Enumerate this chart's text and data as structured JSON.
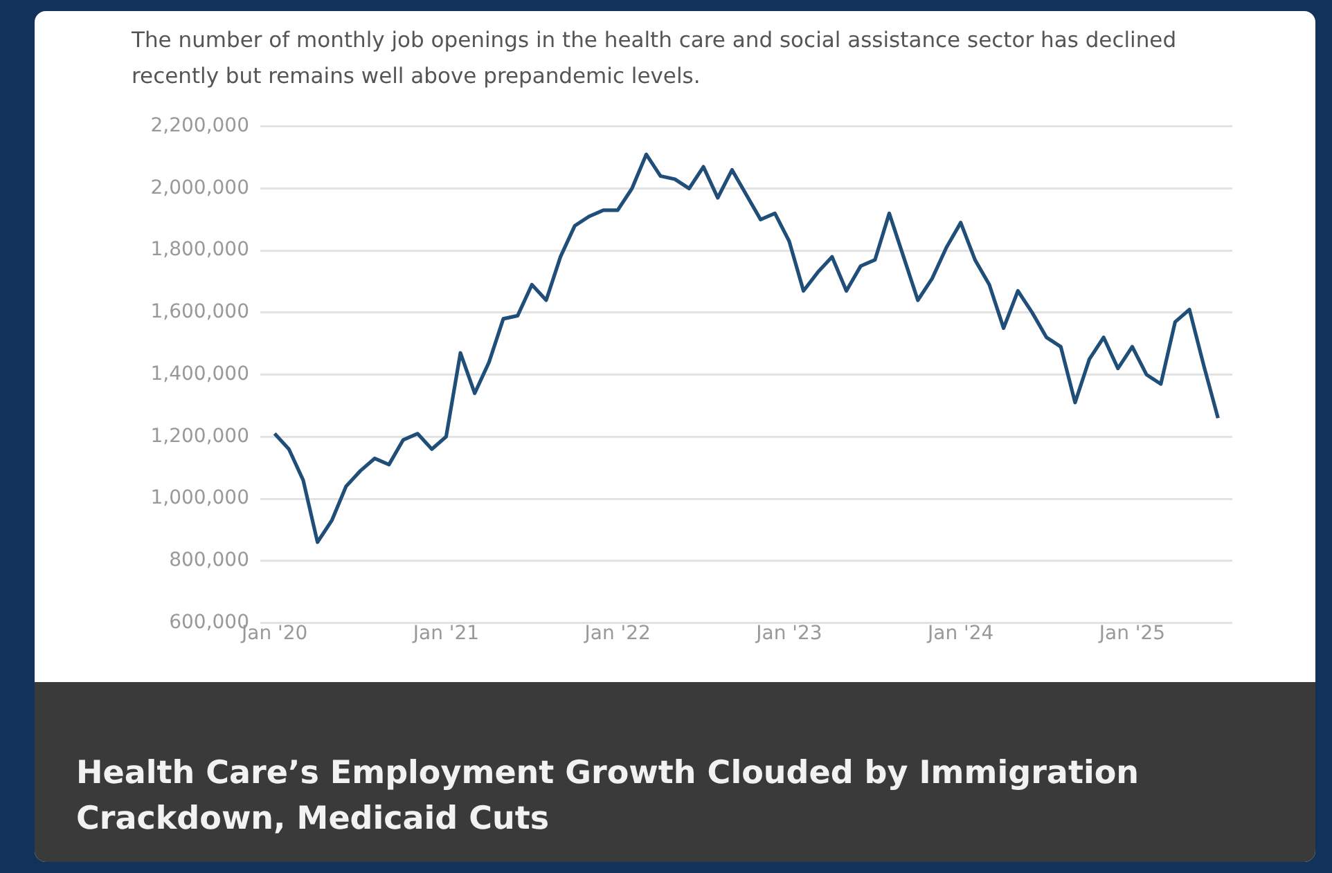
{
  "chart_data": {
    "type": "line",
    "title": "Health Care’s Employment Growth Clouded by Immigration Crackdown, Medicaid Cuts",
    "subtitle": "The number of monthly job openings in the health care and social assistance sector has declined recently but remains well above prepandemic levels.",
    "x": [
      "2020-01",
      "2020-02",
      "2020-03",
      "2020-04",
      "2020-05",
      "2020-06",
      "2020-07",
      "2020-08",
      "2020-09",
      "2020-10",
      "2020-11",
      "2020-12",
      "2021-01",
      "2021-02",
      "2021-03",
      "2021-04",
      "2021-05",
      "2021-06",
      "2021-07",
      "2021-08",
      "2021-09",
      "2021-10",
      "2021-11",
      "2021-12",
      "2022-01",
      "2022-02",
      "2022-03",
      "2022-04",
      "2022-05",
      "2022-06",
      "2022-07",
      "2022-08",
      "2022-09",
      "2022-10",
      "2022-11",
      "2022-12",
      "2023-01",
      "2023-02",
      "2023-03",
      "2023-04",
      "2023-05",
      "2023-06",
      "2023-07",
      "2023-08",
      "2023-09",
      "2023-10",
      "2023-11",
      "2023-12",
      "2024-01",
      "2024-02",
      "2024-03",
      "2024-04",
      "2024-05",
      "2024-06",
      "2024-07",
      "2024-08",
      "2024-09",
      "2024-10",
      "2024-11",
      "2024-12",
      "2025-01",
      "2025-02",
      "2025-03",
      "2025-04",
      "2025-05",
      "2025-06",
      "2025-07"
    ],
    "values": [
      1210000,
      1160000,
      1060000,
      860000,
      930000,
      1040000,
      1090000,
      1130000,
      1110000,
      1190000,
      1210000,
      1160000,
      1200000,
      1470000,
      1340000,
      1440000,
      1580000,
      1590000,
      1690000,
      1640000,
      1780000,
      1880000,
      1910000,
      1930000,
      1930000,
      2000000,
      2110000,
      2040000,
      2030000,
      2000000,
      2070000,
      1970000,
      2060000,
      1980000,
      1900000,
      1920000,
      1830000,
      1670000,
      1730000,
      1780000,
      1670000,
      1750000,
      1770000,
      1920000,
      1780000,
      1640000,
      1710000,
      1810000,
      1890000,
      1770000,
      1690000,
      1550000,
      1670000,
      1600000,
      1520000,
      1490000,
      1310000,
      1450000,
      1520000,
      1420000,
      1490000,
      1400000,
      1370000,
      1570000,
      1610000,
      1430000,
      1260000
    ],
    "color": "#1f4e79",
    "marker": "none",
    "grid": "y",
    "legend": false,
    "xlim": [
      "2019-12",
      "2025-08"
    ],
    "xticks": [
      {
        "value": "2020-01",
        "label": "Jan '20"
      },
      {
        "value": "2021-01",
        "label": "Jan '21"
      },
      {
        "value": "2022-01",
        "label": "Jan '22"
      },
      {
        "value": "2023-01",
        "label": "Jan '23"
      },
      {
        "value": "2024-01",
        "label": "Jan '24"
      },
      {
        "value": "2025-01",
        "label": "Jan '25"
      }
    ],
    "ylim": [
      600000,
      2200000
    ],
    "yticks": [
      {
        "value": 600000,
        "label": "600,000"
      },
      {
        "value": 800000,
        "label": "800,000"
      },
      {
        "value": 1000000,
        "label": "1,000,000"
      },
      {
        "value": 1200000,
        "label": "1,200,000"
      },
      {
        "value": 1400000,
        "label": "1,400,000"
      },
      {
        "value": 1600000,
        "label": "1,600,000"
      },
      {
        "value": 1800000,
        "label": "1,800,000"
      },
      {
        "value": 2000000,
        "label": "2,000,000"
      },
      {
        "value": 2200000,
        "label": "2,200,000"
      }
    ]
  }
}
